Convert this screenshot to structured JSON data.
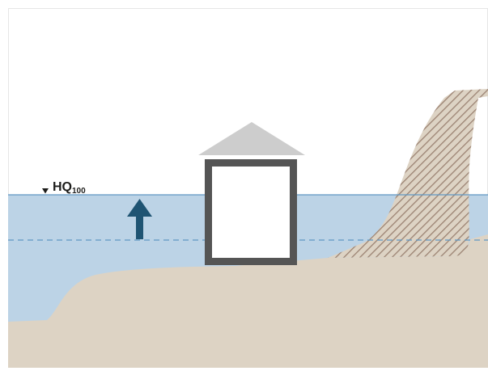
{
  "diagram": {
    "water_level_label": "HQ",
    "water_level_subscript": "100",
    "colors": {
      "frame_border": "#e6e6e6",
      "water_fill": "#bcd3e6",
      "water_line": "#5f97c4",
      "ground_fill": "#ddd3c4",
      "slope_stroke": "#9b8272",
      "house_roof": "#cdcdcd",
      "house_wall": "#555555",
      "arrow": "#1f5473",
      "label_text": "#1d1d1b"
    },
    "icons": {
      "water_level_marker": "triangle-down-icon",
      "rise_arrow": "arrow-up-icon"
    }
  }
}
